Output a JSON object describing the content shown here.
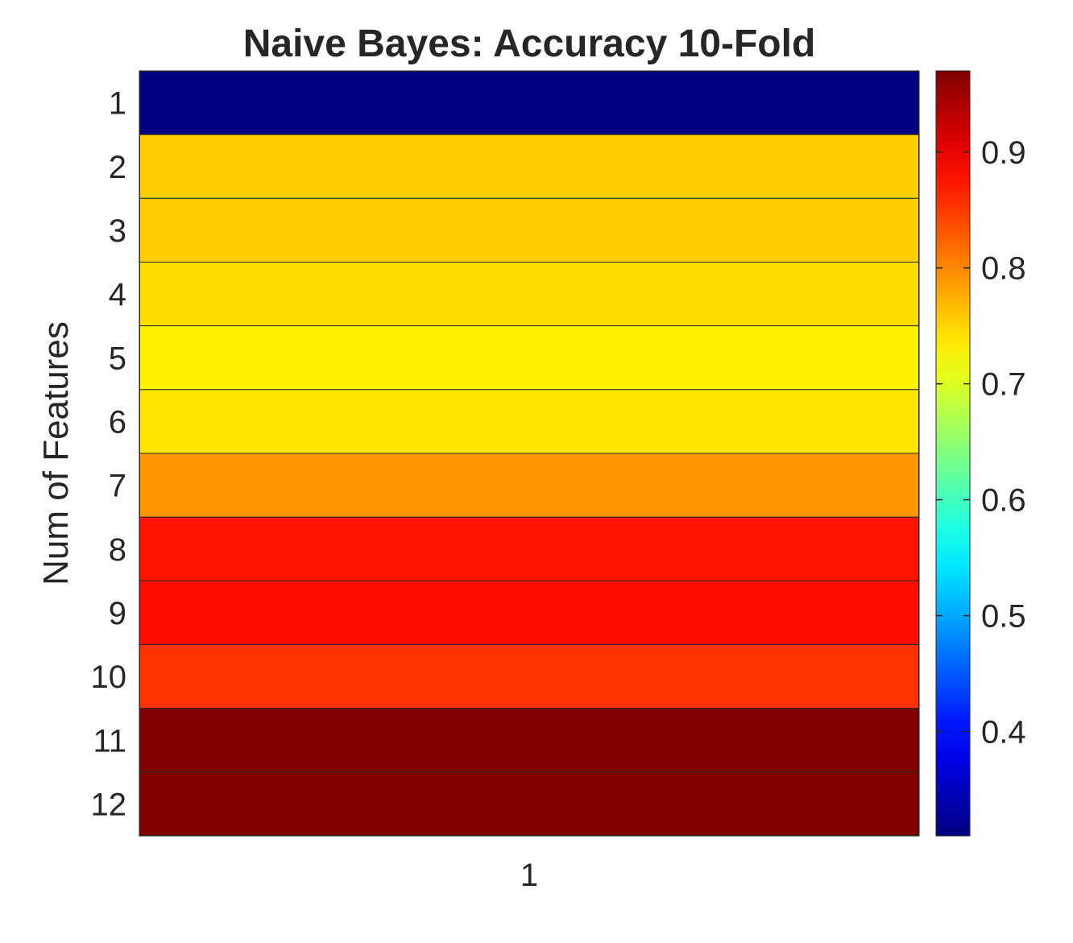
{
  "chart_data": {
    "type": "heatmap",
    "title": "Naive Bayes: Accuracy 10-Fold",
    "ylabel": "Num of Features",
    "xlabel": "",
    "x_categories": [
      "1"
    ],
    "y_categories": [
      "1",
      "2",
      "3",
      "4",
      "5",
      "6",
      "7",
      "8",
      "9",
      "10",
      "11",
      "12"
    ],
    "values": [
      0.31,
      0.755,
      0.755,
      0.745,
      0.73,
      0.74,
      0.79,
      0.875,
      0.88,
      0.855,
      0.97,
      0.97
    ],
    "colorbar": {
      "colormap": "jet",
      "clim": [
        0.31,
        0.97
      ],
      "ticks": [
        0.4,
        0.5,
        0.6,
        0.7,
        0.8,
        0.9
      ],
      "tick_labels": [
        "0.4",
        "0.5",
        "0.6",
        "0.7",
        "0.8",
        "0.9"
      ]
    },
    "grid": false
  }
}
